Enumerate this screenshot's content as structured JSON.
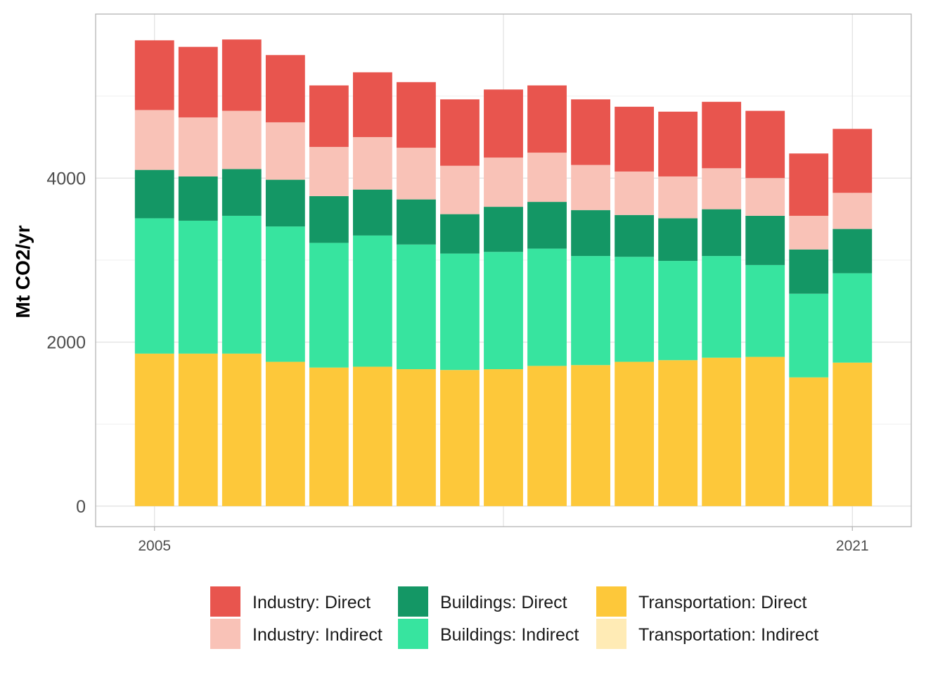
{
  "chart_data": {
    "type": "bar",
    "stacked": true,
    "title": "",
    "xlabel": "",
    "ylabel": "Mt CO2/yr",
    "x": [
      2005,
      2006,
      2007,
      2008,
      2009,
      2010,
      2011,
      2012,
      2013,
      2014,
      2015,
      2016,
      2017,
      2018,
      2019,
      2020,
      2021
    ],
    "x_ticks": [
      2005,
      2021
    ],
    "x_tick_labels": [
      "2005",
      "2021"
    ],
    "y_ticks": [
      0,
      2000,
      4000
    ],
    "y_tick_labels": [
      "0",
      "2000",
      "4000"
    ],
    "ylim": [
      -250,
      6000
    ],
    "grid": true,
    "legend_position": "bottom",
    "series": [
      {
        "name": "Transportation: Indirect",
        "color": "#FFEBB5",
        "values": [
          0,
          0,
          0,
          0,
          0,
          0,
          0,
          0,
          0,
          0,
          0,
          0,
          0,
          0,
          0,
          0,
          0
        ]
      },
      {
        "name": "Transportation: Direct",
        "color": "#FDC83A",
        "values": [
          1860,
          1860,
          1860,
          1760,
          1690,
          1700,
          1670,
          1660,
          1670,
          1710,
          1720,
          1760,
          1780,
          1810,
          1820,
          1570,
          1750
        ]
      },
      {
        "name": "Buildings: Indirect",
        "color": "#37E49F",
        "values": [
          1650,
          1620,
          1680,
          1650,
          1520,
          1600,
          1520,
          1420,
          1430,
          1430,
          1330,
          1280,
          1210,
          1240,
          1120,
          1020,
          1090
        ]
      },
      {
        "name": "Buildings: Direct",
        "color": "#149765",
        "values": [
          590,
          540,
          570,
          570,
          570,
          560,
          550,
          480,
          550,
          570,
          560,
          510,
          520,
          570,
          600,
          540,
          540
        ]
      },
      {
        "name": "Industry: Indirect",
        "color": "#F9C2B7",
        "values": [
          730,
          720,
          710,
          700,
          600,
          640,
          630,
          590,
          600,
          600,
          550,
          530,
          510,
          500,
          460,
          410,
          440
        ]
      },
      {
        "name": "Industry: Direct",
        "color": "#E8554E",
        "values": [
          850,
          860,
          870,
          820,
          750,
          790,
          800,
          810,
          830,
          820,
          800,
          790,
          790,
          810,
          820,
          760,
          780
        ]
      }
    ],
    "legend": {
      "columns": [
        [
          "Industry: Direct",
          "Industry: Indirect"
        ],
        [
          "Buildings: Direct",
          "Buildings: Indirect"
        ],
        [
          "Transportation: Direct",
          "Transportation: Indirect"
        ]
      ]
    },
    "colors": {
      "panel_border": "#B3B3B3",
      "grid_major": "#DEDEDE",
      "grid_minor": "#EFEFEF",
      "tick_text": "#4D4D4D"
    }
  }
}
